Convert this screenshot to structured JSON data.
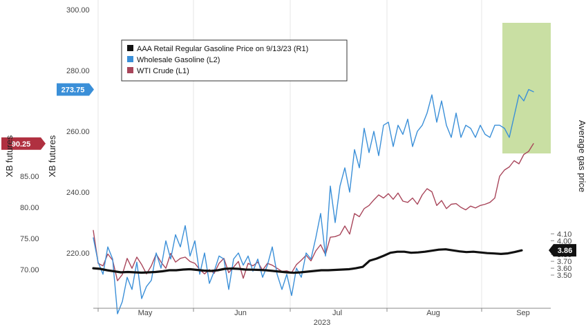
{
  "chart_data": {
    "type": "line",
    "xlabel": "2023",
    "months": [
      "May",
      "Jun",
      "Jul",
      "Aug",
      "Sep"
    ],
    "axes": {
      "far_left": {
        "label": "XB futures",
        "ticks": [
          "70.00",
          "75.00",
          "80.00",
          "85.00"
        ]
      },
      "left": {
        "label": "XB futures",
        "ticks": [
          "220.00",
          "240.00",
          "260.00",
          "280.00",
          "300.00"
        ]
      },
      "right": {
        "label": "Average gas price",
        "ticks": [
          "3.50",
          "3.60",
          "3.70",
          "3.80",
          "3.90",
          "4.00",
          "4.10"
        ]
      }
    },
    "badges": {
      "wti": {
        "text": "90.25",
        "color": "#b03040"
      },
      "wholesale": {
        "text": "273.75",
        "color": "#3a8fd8"
      },
      "aaa": {
        "text": "3.86",
        "color": "#111111"
      }
    },
    "legend": [
      {
        "text": "AAA Retail Regular Gasoline Price on 9/13/23 (R1)",
        "color": "#111111"
      },
      {
        "text": "Wholesale Gasoline (L2)",
        "color": "#3a8fd8"
      },
      {
        "text": "WTI Crude (L1)",
        "color": "#a8455a"
      }
    ],
    "highlight_color": "#c9dfa3",
    "series": [
      {
        "name": "AAA Retail Regular Gasoline Price on 9/13/23 (R1)",
        "axis": "right",
        "color": "#111111",
        "width": 3.2,
        "x": [
          135,
          145,
          155,
          165,
          175,
          185,
          195,
          205,
          215,
          225,
          235,
          245,
          255,
          265,
          275,
          285,
          295,
          305,
          315,
          325,
          335,
          345,
          355,
          365,
          375,
          385,
          395,
          405,
          415,
          425,
          435,
          445,
          455,
          465,
          475,
          485,
          495,
          505,
          515,
          525,
          535,
          545,
          555,
          565,
          575,
          585,
          595,
          605,
          615,
          625,
          635,
          645,
          655,
          665,
          675,
          685,
          695,
          705,
          715,
          725,
          735,
          745,
          755
        ],
        "values": [
          3.6,
          3.59,
          3.57,
          3.555,
          3.54,
          3.545,
          3.54,
          3.535,
          3.54,
          3.545,
          3.555,
          3.57,
          3.57,
          3.58,
          3.585,
          3.575,
          3.565,
          3.56,
          3.57,
          3.59,
          3.595,
          3.59,
          3.58,
          3.578,
          3.575,
          3.57,
          3.56,
          3.55,
          3.54,
          3.533,
          3.54,
          3.55,
          3.56,
          3.57,
          3.57,
          3.575,
          3.58,
          3.585,
          3.6,
          3.62,
          3.71,
          3.74,
          3.78,
          3.825,
          3.84,
          3.84,
          3.825,
          3.83,
          3.84,
          3.855,
          3.87,
          3.875,
          3.86,
          3.845,
          3.835,
          3.84,
          3.83,
          3.82,
          3.815,
          3.808,
          3.816,
          3.836,
          3.86
        ]
      },
      {
        "name": "Wholesale Gasoline (L2)",
        "axis": "left",
        "color": "#3a8fd8",
        "width": 1.4,
        "x": [
          135,
          142,
          149,
          156,
          163,
          170,
          177,
          184,
          191,
          198,
          205,
          212,
          219,
          226,
          233,
          240,
          247,
          254,
          261,
          268,
          275,
          282,
          289,
          296,
          303,
          310,
          317,
          324,
          331,
          338,
          345,
          352,
          359,
          366,
          373,
          380,
          387,
          394,
          401,
          408,
          415,
          422,
          429,
          436,
          443,
          450,
          457,
          464,
          471,
          478,
          485,
          492,
          499,
          506,
          513,
          520,
          527,
          534,
          541,
          548,
          555,
          562,
          569,
          576,
          583,
          590,
          597,
          604,
          611,
          618,
          625,
          632,
          639,
          646,
          653,
          660,
          667,
          674,
          681,
          688,
          695,
          702,
          709,
          716,
          723,
          730,
          737,
          744,
          751,
          758,
          765,
          772
        ],
        "values": [
          225,
          217,
          213,
          222,
          218,
          200,
          204,
          212,
          208,
          217,
          205,
          209,
          211,
          220,
          215,
          224,
          218,
          226,
          222,
          229,
          219,
          224,
          213,
          220,
          210,
          214,
          219,
          218,
          208,
          218,
          220,
          216,
          219,
          214,
          218,
          212,
          216,
          222,
          213,
          208,
          213,
          206,
          215,
          212,
          220,
          218,
          225,
          233,
          219,
          242,
          230,
          242,
          248,
          240,
          254,
          248,
          261,
          253,
          260,
          252,
          262,
          263,
          255,
          262,
          259,
          264,
          255,
          260,
          262,
          266,
          272,
          263,
          270,
          262,
          258,
          266,
          258,
          262,
          261,
          258,
          262,
          259,
          258,
          262,
          262,
          261,
          258,
          265,
          272,
          270,
          273.75,
          273
        ]
      },
      {
        "name": "WTI Crude (L1)",
        "axis": "far_left",
        "color": "#a8455a",
        "width": 1.4,
        "x": [
          135,
          142,
          149,
          156,
          163,
          170,
          177,
          184,
          191,
          198,
          205,
          212,
          219,
          226,
          233,
          240,
          247,
          254,
          261,
          268,
          275,
          282,
          289,
          296,
          303,
          310,
          317,
          324,
          331,
          338,
          345,
          352,
          359,
          366,
          373,
          380,
          387,
          394,
          401,
          408,
          415,
          422,
          429,
          436,
          443,
          450,
          457,
          464,
          471,
          478,
          485,
          492,
          499,
          506,
          513,
          520,
          527,
          534,
          541,
          548,
          555,
          562,
          569,
          576,
          583,
          590,
          597,
          604,
          611,
          618,
          625,
          632,
          639,
          646,
          653,
          660,
          667,
          674,
          681,
          688,
          695,
          702,
          709,
          716,
          723,
          730,
          737,
          744,
          751,
          758,
          765,
          772
        ],
        "values": [
          76.3,
          71.0,
          70.6,
          72.5,
          71.5,
          68.2,
          69.2,
          71.8,
          70.2,
          72.0,
          70.8,
          69.3,
          70.6,
          72.5,
          71.2,
          70.2,
          72.6,
          71.2,
          71.8,
          72.0,
          71.3,
          71.0,
          70.0,
          69.3,
          70.0,
          69.4,
          71.0,
          71.8,
          69.5,
          70.4,
          71.3,
          68.6,
          71.0,
          70.6,
          71.2,
          69.9,
          71.0,
          70.7,
          70.2,
          69.7,
          69.8,
          69.5,
          70.8,
          71.5,
          72.3,
          71.4,
          73.0,
          74.0,
          72.4,
          75.2,
          75.3,
          75.6,
          77.0,
          75.7,
          79.0,
          78.5,
          79.8,
          80.3,
          81.2,
          82.0,
          81.5,
          82.2,
          81.3,
          82.3,
          81.0,
          80.8,
          81.5,
          80.5,
          82.0,
          83.0,
          82.5,
          80.3,
          81.1,
          79.8,
          80.5,
          80.6,
          80.0,
          79.6,
          80.2,
          79.9,
          80.3,
          80.5,
          80.8,
          81.5,
          85.0,
          86.0,
          86.5,
          87.5,
          87.0,
          88.5,
          89.0,
          90.25
        ]
      }
    ]
  }
}
